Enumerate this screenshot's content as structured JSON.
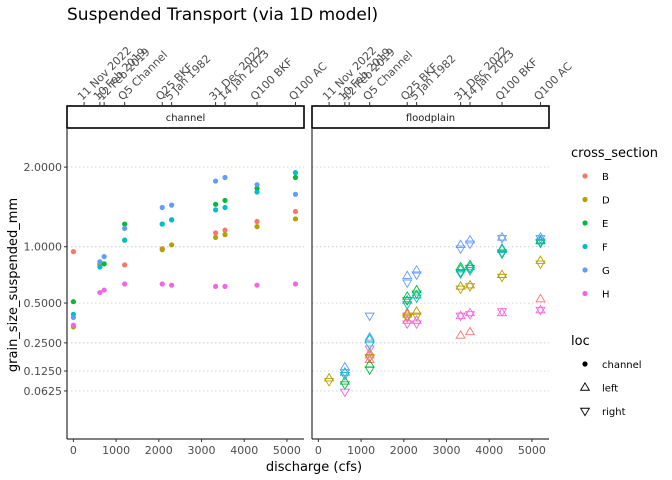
{
  "chart_data": {
    "type": "scatter",
    "title": "Suspended Transport (via 1D model)",
    "xlabel": "discharge (cfs)",
    "ylabel": "grain_size_suspended_mm",
    "xlim": [
      -150,
      5400
    ],
    "x_ticks": [
      0,
      1000,
      2000,
      3000,
      4000,
      5000
    ],
    "y_scale": "sqrt",
    "ylim": [
      0,
      2.6
    ],
    "y_ticks": [
      0.0625,
      0.125,
      0.25,
      0.5,
      1.0,
      2.0
    ],
    "y_tick_labels": [
      "0.0625",
      "0.1250",
      "0.2500",
      "0.5000",
      "1.0000",
      "2.0000"
    ],
    "grid": "horizontal dotted",
    "top_axis": {
      "labels": [
        {
          "x": 250,
          "label": "11 Nov 2022"
        },
        {
          "x": 620,
          "label": "10 Feb 2019"
        },
        {
          "x": 720,
          "label": "12 Feb 2019"
        },
        {
          "x": 1200,
          "label": "Q5 Channel"
        },
        {
          "x": 2080,
          "label": "Q25 BKF"
        },
        {
          "x": 2300,
          "label": "5 Jan 1982"
        },
        {
          "x": 3330,
          "label": "31 Dec 2022"
        },
        {
          "x": 3550,
          "label": "14 Jan 2023"
        },
        {
          "x": 4300,
          "label": "Q100 BKF"
        },
        {
          "x": 5200,
          "label": "Q100 AC"
        }
      ]
    },
    "facets": [
      "channel",
      "floodplain"
    ],
    "legend": [
      {
        "title": "cross_section",
        "position": "right",
        "items": [
          {
            "name": "B",
            "color": "#F8766D"
          },
          {
            "name": "D",
            "color": "#B79F00"
          },
          {
            "name": "E",
            "color": "#00BA38"
          },
          {
            "name": "F",
            "color": "#00BFC4"
          },
          {
            "name": "G",
            "color": "#619CFF"
          },
          {
            "name": "H",
            "color": "#F564E3"
          }
        ]
      },
      {
        "title": "loc",
        "position": "right",
        "items": [
          {
            "name": "channel",
            "shape": "circle"
          },
          {
            "name": "left",
            "shape": "triangle-up"
          },
          {
            "name": "right",
            "shape": "triangle-down"
          }
        ]
      }
    ],
    "series": [
      {
        "facet": "channel",
        "loc": "channel",
        "cross_section": "B",
        "points": [
          [
            0,
            0.95
          ],
          [
            620,
            0.82
          ],
          [
            1200,
            0.82
          ],
          [
            2080,
            0.98
          ],
          [
            3330,
            1.15
          ],
          [
            3550,
            1.18
          ],
          [
            4300,
            1.28
          ],
          [
            5200,
            1.4
          ]
        ]
      },
      {
        "facet": "channel",
        "loc": "channel",
        "cross_section": "D",
        "points": [
          [
            0,
            0.34
          ],
          [
            620,
            0.83
          ],
          [
            1200,
            1.07
          ],
          [
            2080,
            0.97
          ],
          [
            2300,
            1.02
          ],
          [
            3330,
            1.1
          ],
          [
            3550,
            1.13
          ],
          [
            4300,
            1.22
          ],
          [
            5200,
            1.31
          ]
        ]
      },
      {
        "facet": "channel",
        "loc": "channel",
        "cross_section": "E",
        "points": [
          [
            0,
            0.51
          ],
          [
            720,
            0.83
          ],
          [
            1200,
            1.25
          ],
          [
            2080,
            1.25
          ],
          [
            2300,
            1.3
          ],
          [
            3330,
            1.49
          ],
          [
            3550,
            1.54
          ],
          [
            4300,
            1.7
          ],
          [
            5200,
            1.85
          ]
        ]
      },
      {
        "facet": "channel",
        "loc": "channel",
        "cross_section": "F",
        "points": [
          [
            0,
            0.42
          ],
          [
            620,
            0.8
          ],
          [
            1200,
            1.07
          ],
          [
            2080,
            1.25
          ],
          [
            2300,
            1.3
          ],
          [
            3330,
            1.42
          ],
          [
            3550,
            1.45
          ],
          [
            4300,
            1.65
          ],
          [
            5200,
            1.92
          ]
        ]
      },
      {
        "facet": "channel",
        "loc": "channel",
        "cross_section": "G",
        "points": [
          [
            0,
            0.4
          ],
          [
            620,
            0.85
          ],
          [
            720,
            0.9
          ],
          [
            1200,
            1.2
          ],
          [
            2080,
            1.45
          ],
          [
            2300,
            1.48
          ],
          [
            3330,
            1.8
          ],
          [
            3550,
            1.85
          ],
          [
            4300,
            1.75
          ],
          [
            5200,
            1.62
          ]
        ]
      },
      {
        "facet": "channel",
        "loc": "channel",
        "cross_section": "H",
        "points": [
          [
            0,
            0.35
          ],
          [
            620,
            0.58
          ],
          [
            720,
            0.6
          ],
          [
            1200,
            0.65
          ],
          [
            2080,
            0.65
          ],
          [
            2300,
            0.64
          ],
          [
            3330,
            0.63
          ],
          [
            3550,
            0.63
          ],
          [
            4300,
            0.64
          ],
          [
            5200,
            0.65
          ]
        ]
      },
      {
        "facet": "floodplain",
        "loc": "left",
        "cross_section": "B",
        "points": [
          [
            1200,
            0.17
          ],
          [
            2080,
            0.43
          ],
          [
            3330,
            0.29
          ],
          [
            3550,
            0.31
          ],
          [
            5200,
            0.53
          ]
        ]
      },
      {
        "facet": "floodplain",
        "loc": "left",
        "cross_section": "D",
        "points": [
          [
            250,
            0.1
          ],
          [
            1200,
            0.2
          ],
          [
            2080,
            0.42
          ],
          [
            2300,
            0.44
          ],
          [
            3330,
            0.63
          ],
          [
            3550,
            0.64
          ],
          [
            4300,
            0.73
          ],
          [
            5200,
            0.86
          ]
        ]
      },
      {
        "facet": "floodplain",
        "loc": "left",
        "cross_section": "E",
        "points": [
          [
            620,
            0.09
          ],
          [
            1200,
            0.15
          ],
          [
            2080,
            0.55
          ],
          [
            2300,
            0.6
          ],
          [
            3330,
            0.8
          ],
          [
            3550,
            0.82
          ],
          [
            4300,
            0.98
          ],
          [
            5200,
            1.06
          ]
        ]
      },
      {
        "facet": "floodplain",
        "loc": "left",
        "cross_section": "F",
        "points": [
          [
            620,
            0.12
          ],
          [
            1200,
            0.27
          ],
          [
            2080,
            0.52
          ],
          [
            2300,
            0.56
          ],
          [
            3330,
            0.78
          ],
          [
            3550,
            0.8
          ],
          [
            4300,
            0.97
          ],
          [
            5200,
            1.07
          ]
        ]
      },
      {
        "facet": "floodplain",
        "loc": "left",
        "cross_section": "G",
        "points": [
          [
            620,
            0.14
          ],
          [
            1200,
            0.28
          ],
          [
            2080,
            0.72
          ],
          [
            2300,
            0.77
          ],
          [
            3330,
            1.02
          ],
          [
            3550,
            1.07
          ],
          [
            4300,
            1.1
          ],
          [
            5200,
            1.1
          ]
        ]
      },
      {
        "facet": "floodplain",
        "loc": "left",
        "cross_section": "H",
        "points": [
          [
            1200,
            0.19
          ],
          [
            2080,
            0.38
          ],
          [
            2300,
            0.38
          ],
          [
            3330,
            0.41
          ],
          [
            3550,
            0.43
          ],
          [
            4300,
            0.43
          ],
          [
            5200,
            0.45
          ]
        ]
      },
      {
        "facet": "floodplain",
        "loc": "right",
        "cross_section": "B",
        "points": [
          [
            1200,
            0.18
          ],
          [
            2080,
            0.41
          ]
        ]
      },
      {
        "facet": "floodplain",
        "loc": "right",
        "cross_section": "D",
        "points": [
          [
            250,
            0.09
          ],
          [
            1200,
            0.18
          ],
          [
            2080,
            0.4
          ],
          [
            2300,
            0.41
          ],
          [
            3330,
            0.61
          ],
          [
            3550,
            0.63
          ],
          [
            4300,
            0.71
          ],
          [
            5200,
            0.83
          ]
        ]
      },
      {
        "facet": "floodplain",
        "loc": "right",
        "cross_section": "E",
        "points": [
          [
            620,
            0.08
          ],
          [
            1200,
            0.13
          ],
          [
            2080,
            0.52
          ],
          [
            2300,
            0.57
          ],
          [
            3330,
            0.75
          ],
          [
            3550,
            0.79
          ],
          [
            4300,
            0.93
          ],
          [
            5200,
            1.04
          ]
        ]
      },
      {
        "facet": "floodplain",
        "loc": "right",
        "cross_section": "F",
        "points": [
          [
            620,
            0.11
          ],
          [
            1200,
            0.24
          ],
          [
            2080,
            0.49
          ],
          [
            2300,
            0.54
          ],
          [
            3330,
            0.74
          ],
          [
            3550,
            0.77
          ],
          [
            4300,
            0.94
          ],
          [
            5200,
            1.05
          ]
        ]
      },
      {
        "facet": "floodplain",
        "loc": "right",
        "cross_section": "G",
        "points": [
          [
            620,
            0.12
          ],
          [
            1200,
            0.41
          ],
          [
            2080,
            0.66
          ],
          [
            2300,
            0.73
          ],
          [
            3330,
            0.98
          ],
          [
            3550,
            1.03
          ],
          [
            4300,
            1.09
          ],
          [
            5200,
            1.09
          ]
        ]
      },
      {
        "facet": "floodplain",
        "loc": "right",
        "cross_section": "H",
        "points": [
          [
            620,
            0.06
          ],
          [
            1200,
            0.22
          ],
          [
            2080,
            0.36
          ],
          [
            2300,
            0.36
          ],
          [
            3330,
            0.41
          ],
          [
            3550,
            0.42
          ],
          [
            4300,
            0.44
          ],
          [
            5200,
            0.45
          ]
        ]
      }
    ]
  }
}
